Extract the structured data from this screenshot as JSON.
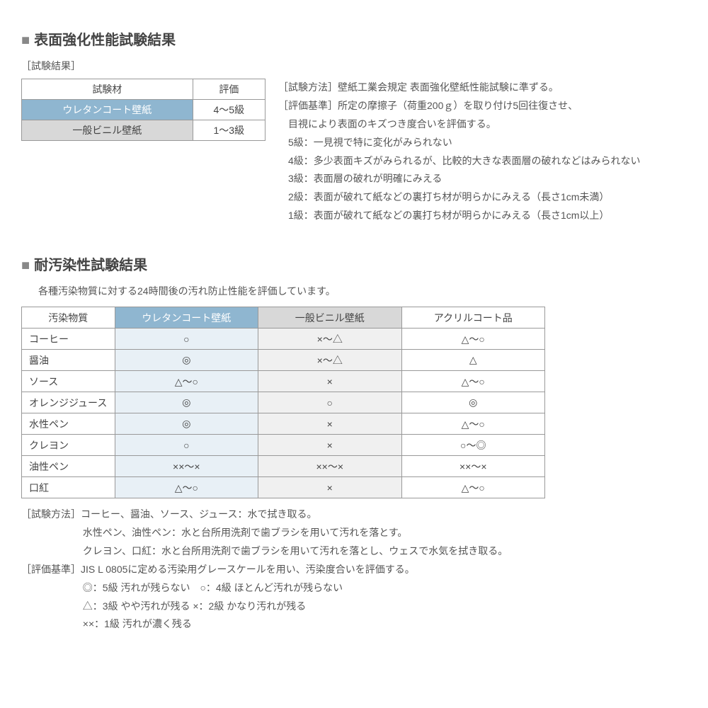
{
  "section1": {
    "title": "表面強化性能試験結果",
    "subtitle": "［試験結果］",
    "table": {
      "h1": "試験材",
      "h2": "評価",
      "r1c1": "ウレタンコート壁紙",
      "r1c2": "4～5級",
      "r2c1": "一般ビニル壁紙",
      "r2c2": "1～3級"
    },
    "desc": {
      "l1": "［試験方法］壁紙工業会規定 表面強化壁紙性能試験に準ずる。",
      "l2": "［評価基準］所定の摩擦子（荷重200ｇ）を取り付け5回往復させ、",
      "l3": "目視により表面のキズつき度合いを評価する。",
      "l4": "5級：一見視で特に変化がみられない",
      "l5": "4級：多少表面キズがみられるが、比較的大きな表面層の破れなどはみられない",
      "l6": "3級：表面層の破れが明確にみえる",
      "l7": "2級：表面が破れて紙などの裏打ち材が明らかにみえる（長さ1cm未満）",
      "l8": "1級：表面が破れて紙などの裏打ち材が明らかにみえる（長さ1cm以上）"
    }
  },
  "section2": {
    "title": "耐汚染性試験結果",
    "subtitle": "各種汚染物質に対する24時間後の汚れ防止性能を評価しています。",
    "headers": {
      "h1": "汚染物質",
      "h2": "ウレタンコート壁紙",
      "h3": "一般ビニル壁紙",
      "h4": "アクリルコート品"
    },
    "rows": [
      {
        "c1": "コーヒー",
        "c2": "○",
        "c3": "×～△",
        "c4": "△～○"
      },
      {
        "c1": "醤油",
        "c2": "◎",
        "c3": "×～△",
        "c4": "△"
      },
      {
        "c1": "ソース",
        "c2": "△～○",
        "c3": "×",
        "c4": "△～○"
      },
      {
        "c1": "オレンジジュース",
        "c2": "◎",
        "c3": "○",
        "c4": "◎"
      },
      {
        "c1": "水性ペン",
        "c2": "◎",
        "c3": "×",
        "c4": "△～○"
      },
      {
        "c1": "クレヨン",
        "c2": "○",
        "c3": "×",
        "c4": "○～◎"
      },
      {
        "c1": "油性ペン",
        "c2": "××～×",
        "c3": "××～×",
        "c4": "××～×"
      },
      {
        "c1": "口紅",
        "c2": "△～○",
        "c3": "×",
        "c4": "△～○"
      }
    ],
    "notes": {
      "l1": "［試験方法］コーヒー、醤油、ソース、ジュース：水で拭き取る。",
      "l2": "水性ペン、油性ペン：水と台所用洗剤で歯ブラシを用いて汚れを落とす。",
      "l3": "クレヨン、口紅：水と台所用洗剤で歯ブラシを用いて汚れを落とし、ウェスで水気を拭き取る。",
      "l4": "［評価基準］JIS L 0805に定める汚染用グレースケールを用い、汚染度合いを評価する。",
      "l5": "◎：5級 汚れが残らない　○：4級 ほとんど汚れが残らない",
      "l6": "△：3級 やや汚れが残る ×：2級 かなり汚れが残る",
      "l7": "××：1級 汚れが濃く残る"
    }
  }
}
